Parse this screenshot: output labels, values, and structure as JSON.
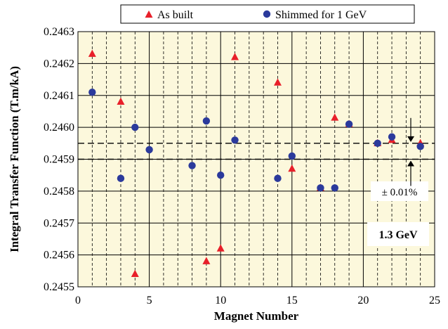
{
  "chart_data": {
    "type": "scatter",
    "xlabel": "Magnet Number",
    "ylabel": "Integral Transfer Function (T.m/kA)",
    "xlim": [
      0,
      25
    ],
    "ylim": [
      0.2455,
      0.2463
    ],
    "x_ticks": [
      0,
      5,
      10,
      15,
      20,
      25
    ],
    "x_tick_labels": [
      "0",
      "5",
      "10",
      "15",
      "20",
      "25"
    ],
    "y_ticks": [
      0.2455,
      0.2456,
      0.2457,
      0.2458,
      0.2459,
      0.246,
      0.2461,
      0.2462,
      0.2463
    ],
    "y_tick_labels": [
      "0.2455",
      "0.2456",
      "0.2457",
      "0.2458",
      "0.2459",
      "0.2460",
      "0.2461",
      "0.2462",
      "0.2463"
    ],
    "grid_major_x": [
      5,
      10,
      15,
      20
    ],
    "grid_minor_x": [
      1,
      2,
      3,
      4,
      6,
      7,
      8,
      9,
      11,
      12,
      13,
      14,
      16,
      17,
      18,
      19,
      21,
      22,
      23,
      24
    ],
    "grid_y": true,
    "legend_position": "top-center",
    "series": [
      {
        "name": "As built",
        "marker": "triangle",
        "color": "#e8202a",
        "points": [
          [
            1,
            0.24623
          ],
          [
            3,
            0.24608
          ],
          [
            4,
            0.24554
          ],
          [
            9,
            0.24558
          ],
          [
            10,
            0.24562
          ],
          [
            11,
            0.24622
          ],
          [
            14,
            0.24614
          ],
          [
            15,
            0.24587
          ],
          [
            17,
            0.24581
          ],
          [
            18,
            0.24603
          ],
          [
            19,
            0.24601
          ],
          [
            21,
            0.24595
          ],
          [
            22,
            0.24596
          ],
          [
            24,
            0.24595
          ]
        ]
      },
      {
        "name": "Shimmed for 1 GeV",
        "marker": "circle",
        "color": "#2b3a9c",
        "points": [
          [
            1,
            0.24611
          ],
          [
            3,
            0.24584
          ],
          [
            4,
            0.246
          ],
          [
            5,
            0.24593
          ],
          [
            8,
            0.24588
          ],
          [
            9,
            0.24602
          ],
          [
            10,
            0.24585
          ],
          [
            11,
            0.24596
          ],
          [
            14,
            0.24584
          ],
          [
            15,
            0.24591
          ],
          [
            17,
            0.24581
          ],
          [
            18,
            0.24581
          ],
          [
            19,
            0.24601
          ],
          [
            21,
            0.24595
          ],
          [
            22,
            0.24597
          ],
          [
            24,
            0.24594
          ]
        ]
      }
    ],
    "band": {
      "lower": 0.2459,
      "upper": 0.24595,
      "line_style": "dashed"
    },
    "annotations": {
      "tolerance": "± 0.01%",
      "energy": "1.3 GeV"
    }
  }
}
